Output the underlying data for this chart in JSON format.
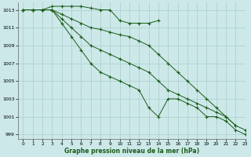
{
  "title": "Graphe pression niveau de la mer (hPa)",
  "bg_color": "#cce8e8",
  "grid_color": "#aacccc",
  "line_color": "#1a5c1a",
  "xlim": [
    -0.5,
    23
  ],
  "ylim": [
    998.5,
    1013.8
  ],
  "yticks": [
    999,
    1001,
    1003,
    1005,
    1007,
    1009,
    1011,
    1013
  ],
  "xticks": [
    0,
    1,
    2,
    3,
    4,
    5,
    6,
    7,
    8,
    9,
    10,
    11,
    12,
    13,
    14,
    15,
    16,
    17,
    18,
    19,
    20,
    21,
    22,
    23
  ],
  "series": [
    {
      "x": [
        0,
        1,
        2,
        3,
        4,
        5,
        6,
        7,
        8,
        9,
        10,
        11,
        12,
        13,
        14
      ],
      "y": [
        1013,
        1013,
        1013,
        1013.4,
        1013.4,
        1013.4,
        1013.4,
        1013.2,
        1013,
        1013,
        1011.8,
        1011.5,
        1011.5,
        1011.5,
        1011.8
      ],
      "marker": "+"
    },
    {
      "x": [
        0,
        1,
        2,
        3,
        4,
        5,
        6,
        7,
        8,
        9,
        10,
        11,
        12,
        13,
        14,
        15,
        16,
        17,
        18,
        19,
        20,
        21,
        22
      ],
      "y": [
        1013,
        1013,
        1013,
        1013,
        1012.5,
        1012,
        1011.5,
        1011,
        1010.8,
        1010.5,
        1010.2,
        1010,
        1009.5,
        1009,
        1008,
        1007,
        1006,
        1005,
        1004,
        1003,
        1002,
        1001,
        1000
      ],
      "marker": "+"
    },
    {
      "x": [
        0,
        1,
        2,
        3,
        4,
        5,
        6,
        7,
        8,
        9,
        10,
        11,
        12,
        13,
        14,
        15,
        16,
        17,
        18,
        19,
        20,
        21,
        22,
        23
      ],
      "y": [
        1013,
        1013,
        1013,
        1013,
        1012,
        1011,
        1010,
        1009,
        1008.5,
        1008,
        1007.5,
        1007,
        1006.5,
        1006,
        1005,
        1004,
        1003.5,
        1003,
        1002.5,
        1002,
        1001.5,
        1001,
        1000,
        999.5
      ],
      "marker": "+"
    },
    {
      "x": [
        0,
        1,
        2,
        3,
        4,
        5,
        6,
        7,
        8,
        9,
        10,
        11,
        12,
        13,
        14,
        15,
        16,
        17,
        18,
        19,
        20,
        21,
        22,
        23
      ],
      "y": [
        1013,
        1013,
        1013,
        1013,
        1011.5,
        1010,
        1008.5,
        1007,
        1006,
        1005.5,
        1005,
        1004.5,
        1004,
        1002,
        1001,
        1003,
        1003,
        1002.5,
        1002,
        1001,
        1001,
        1000.5,
        999.5,
        999
      ],
      "marker": "+"
    }
  ]
}
